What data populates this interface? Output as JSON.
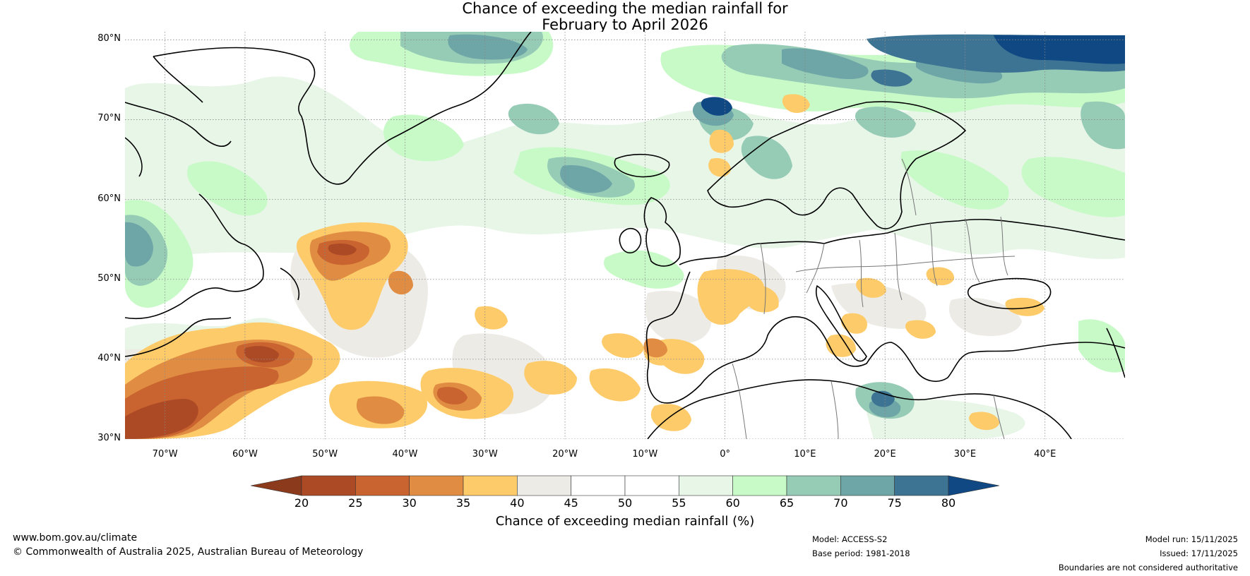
{
  "title": {
    "line1": "Chance of exceeding the median rainfall for",
    "line2": "February to April 2026"
  },
  "map": {
    "region": "North Atlantic and Europe",
    "lat_range": [
      30,
      81
    ],
    "lon_range": [
      -75,
      50
    ],
    "lat_labels": [
      "80°N",
      "70°N",
      "60°N",
      "50°N",
      "40°N",
      "30°N"
    ],
    "lat_values": [
      80,
      70,
      60,
      50,
      40,
      30
    ],
    "lon_labels": [
      "70°W",
      "60°W",
      "50°W",
      "40°W",
      "30°W",
      "20°W",
      "10°W",
      "0°",
      "10°E",
      "20°E",
      "30°E",
      "40°E"
    ],
    "lon_values": [
      -70,
      -60,
      -50,
      -40,
      -30,
      -20,
      -10,
      0,
      10,
      20,
      30,
      40
    ]
  },
  "colorbar": {
    "label": "Chance of exceeding median rainfall (%)",
    "ticks": [
      "20",
      "25",
      "30",
      "35",
      "40",
      "45",
      "50",
      "55",
      "60",
      "65",
      "70",
      "75",
      "80"
    ],
    "colors": [
      "#ad4a26",
      "#c9632f",
      "#e08d43",
      "#fecb6a",
      "#edebe6",
      "#ffffff",
      "#ffffff",
      "#e8f6e8",
      "#c8fac8",
      "#96cbb6",
      "#6ea5a7",
      "#3e7493"
    ],
    "under_color": "#8b3a1c",
    "over_color": "#0f4882"
  },
  "footer": {
    "website": "www.bom.gov.au/climate",
    "copyright": "© Commonwealth of Australia 2025, Australian Bureau of Meteorology",
    "model": "Model: ACCESS-S2",
    "base_period": "Base period: 1981-2018",
    "model_run": "Model run: 15/11/2025",
    "issued": "Issued: 17/11/2025",
    "disclaimer": "Boundaries are not considered authoritative"
  }
}
